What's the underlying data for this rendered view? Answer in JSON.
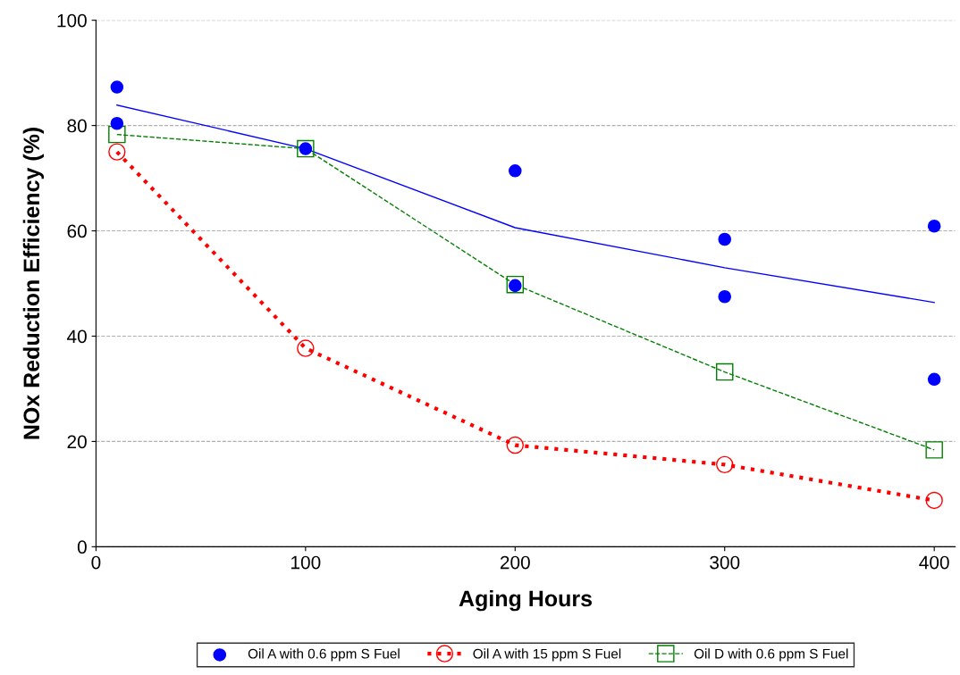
{
  "chart_data": {
    "type": "line",
    "xlabel": "Aging Hours",
    "ylabel": "NOx Reduction Efficiency (%)",
    "xlim": [
      0,
      410
    ],
    "xticks": [
      0,
      100,
      200,
      300,
      400
    ],
    "ylim": [
      0,
      100
    ],
    "yticks": [
      0,
      20,
      40,
      60,
      80,
      100
    ],
    "grid": "y",
    "legend": "bottom",
    "series": [
      {
        "name": "Oil A with 0.6 ppm S Fuel",
        "type": "scatter",
        "color": "#0000ff",
        "marker": "circle",
        "x": [
          10,
          10,
          100,
          200,
          200,
          300,
          300,
          400,
          400
        ],
        "values": [
          87.3,
          80.4,
          75.6,
          71.4,
          49.6,
          58.4,
          47.5,
          60.9,
          31.8
        ]
      },
      {
        "color": "#0000ff",
        "marker": "none",
        "line_style": "solid",
        "x": [
          10,
          100,
          200,
          300,
          400
        ],
        "values": [
          83.9,
          75.6,
          60.6,
          53.0,
          46.4
        ]
      },
      {
        "name": "Oil A with 15 ppm S Fuel",
        "color": "#ff0000",
        "marker": "circle",
        "line_style": "dotted",
        "x": [
          10,
          100,
          200,
          300,
          400
        ],
        "values": [
          75.0,
          37.7,
          19.3,
          15.6,
          8.8
        ]
      },
      {
        "name": "Oil D with 0.6 ppm S Fuel",
        "color": "#008000",
        "marker": "square",
        "line_style": "dashed",
        "x": [
          10,
          100,
          200,
          300,
          400
        ],
        "values": [
          78.3,
          75.6,
          49.8,
          33.2,
          18.4
        ]
      }
    ]
  }
}
